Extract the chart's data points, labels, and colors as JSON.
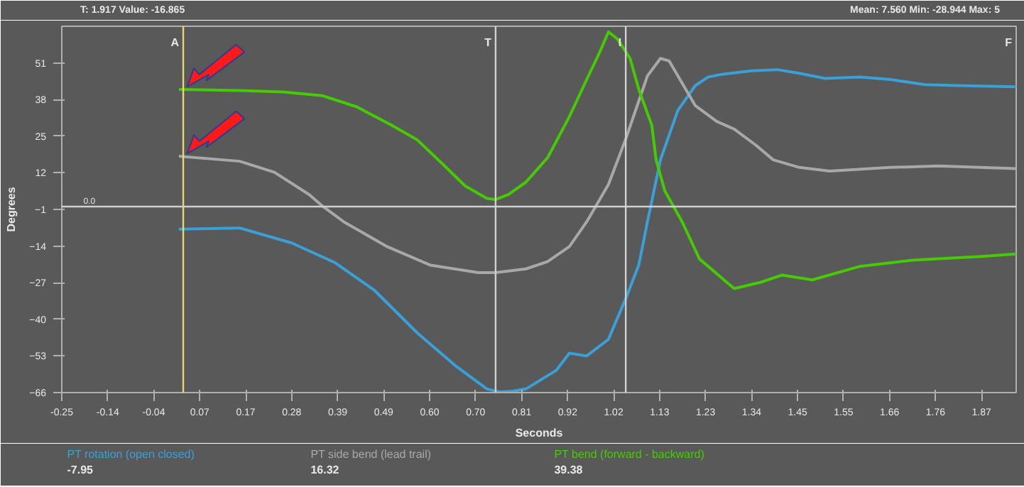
{
  "chart_data": {
    "type": "line",
    "xlabel": "Seconds",
    "ylabel": "Degrees",
    "xlim": [
      -0.25,
      1.95
    ],
    "ylim": [
      -66,
      64
    ],
    "xticks": [
      {
        "value": -0.25,
        "label": "-0.25"
      },
      {
        "value": -0.144,
        "label": "-0.14"
      },
      {
        "value": -0.038,
        "label": "-0.04"
      },
      {
        "value": 0.068,
        "label": "0.07"
      },
      {
        "value": 0.174,
        "label": "0.17"
      },
      {
        "value": 0.28,
        "label": "0.28"
      },
      {
        "value": 0.386,
        "label": "0.39"
      },
      {
        "value": 0.492,
        "label": "0.49"
      },
      {
        "value": 0.598,
        "label": "0.60"
      },
      {
        "value": 0.704,
        "label": "0.70"
      },
      {
        "value": 0.81,
        "label": "0.81"
      },
      {
        "value": 0.916,
        "label": "0.92"
      },
      {
        "value": 1.022,
        "label": "1.02"
      },
      {
        "value": 1.128,
        "label": "1.13"
      },
      {
        "value": 1.234,
        "label": "1.23"
      },
      {
        "value": 1.34,
        "label": "1.34"
      },
      {
        "value": 1.446,
        "label": "1.45"
      },
      {
        "value": 1.552,
        "label": "1.55"
      },
      {
        "value": 1.658,
        "label": "1.66"
      },
      {
        "value": 1.764,
        "label": "1.76"
      },
      {
        "value": 1.87,
        "label": "1.87"
      }
    ],
    "yticks": [
      -66,
      -53,
      -40,
      -27,
      -14,
      -1,
      12,
      25,
      38,
      51
    ],
    "grid": false,
    "legend": "bottom",
    "ref_lines": [
      {
        "axis": "x",
        "value": 0.03,
        "label": "A",
        "color": "#e8d870"
      },
      {
        "axis": "x",
        "value": 0.75,
        "label": "T",
        "color": "#d0d0d0"
      },
      {
        "axis": "x",
        "value": 1.05,
        "label": "I",
        "color": "#d0d0d0"
      },
      {
        "axis": "y",
        "value": 0,
        "label": "0.0",
        "color": "#d0d0d0"
      }
    ],
    "annotations": [
      "T: 1.917   Value: -16.865",
      "Mean: 7.560   Min: -28.944   Max: 5",
      "-7.95",
      "16.32",
      "39.38",
      "F"
    ],
    "series": [
      {
        "name": "PT rotation (open closed)",
        "color": "#3aa0d8",
        "x": [
          0.02,
          0.16,
          0.28,
          0.38,
          0.47,
          0.57,
          0.66,
          0.73,
          0.76,
          0.79,
          0.82,
          0.89,
          0.92,
          0.96,
          1.01,
          1.05,
          1.08,
          1.1,
          1.13,
          1.17,
          1.21,
          1.24,
          1.27,
          1.34,
          1.4,
          1.45,
          1.51,
          1.59,
          1.66,
          1.74,
          1.83,
          1.95
        ],
        "values": [
          -8.0,
          -7.6,
          -12.9,
          -19.9,
          -29.6,
          -44.9,
          -56.8,
          -64.7,
          -65.8,
          -65.5,
          -64.7,
          -58.1,
          -52.0,
          -53.0,
          -47.1,
          -32.6,
          -20.8,
          -5.4,
          16.6,
          34.1,
          42.9,
          46.0,
          46.9,
          48.2,
          48.6,
          47.3,
          45.5,
          46.0,
          45.1,
          43.3,
          42.9,
          42.5
        ]
      },
      {
        "name": "PT side bend (lead trail)",
        "color": "#a8a8a8",
        "x": [
          0.02,
          0.16,
          0.24,
          0.32,
          0.35,
          0.4,
          0.5,
          0.6,
          0.71,
          0.75,
          0.82,
          0.87,
          0.92,
          0.96,
          1.01,
          1.05,
          1.1,
          1.13,
          1.15,
          1.21,
          1.26,
          1.3,
          1.35,
          1.39,
          1.45,
          1.52,
          1.66,
          1.77,
          1.95
        ],
        "values": [
          17.9,
          16.1,
          12.2,
          4.3,
          0.3,
          -5.4,
          -14.2,
          -20.8,
          -23.4,
          -23.4,
          -22.1,
          -19.5,
          -14.2,
          -5.4,
          7.8,
          24.0,
          46.4,
          52.6,
          51.7,
          35.9,
          30.2,
          27.5,
          21.8,
          16.6,
          13.9,
          12.6,
          13.9,
          14.4,
          13.5
        ]
      },
      {
        "name": "PT bend (forward - backward)",
        "color": "#44cc00",
        "x": [
          0.02,
          0.16,
          0.26,
          0.35,
          0.43,
          0.51,
          0.57,
          0.63,
          0.68,
          0.73,
          0.75,
          0.78,
          0.82,
          0.87,
          0.92,
          0.96,
          0.99,
          1.01,
          1.03,
          1.06,
          1.08,
          1.11,
          1.12,
          1.14,
          1.18,
          1.22,
          1.3,
          1.36,
          1.41,
          1.48,
          1.59,
          1.71,
          1.87,
          1.95
        ],
        "values": [
          41.6,
          41.2,
          40.7,
          39.4,
          35.4,
          28.9,
          23.6,
          14.8,
          7.3,
          2.9,
          2.5,
          4.3,
          8.7,
          17.4,
          31.9,
          45.1,
          54.8,
          62.0,
          59.6,
          52.6,
          41.6,
          28.9,
          16.6,
          5.6,
          -5.4,
          -18.6,
          -29.1,
          -26.9,
          -24.3,
          -26.0,
          -21.2,
          -19.0,
          -17.7,
          -16.8
        ]
      }
    ]
  }
}
